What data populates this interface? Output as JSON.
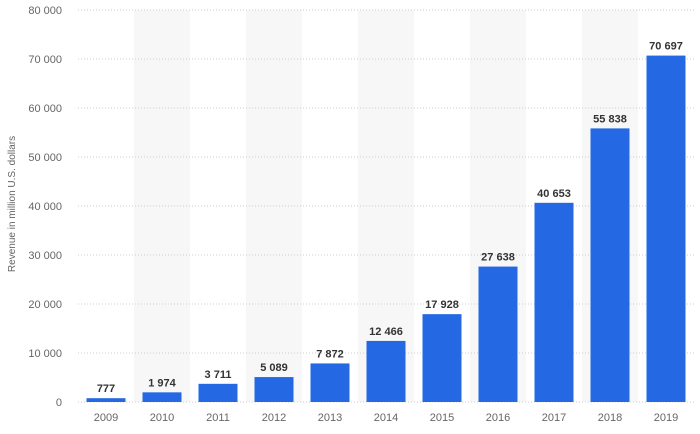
{
  "chart_data": {
    "type": "bar",
    "title": "",
    "xlabel": "",
    "ylabel": "Revenue in million U.S. dollars",
    "categories": [
      "2009",
      "2010",
      "2011",
      "2012",
      "2013",
      "2014",
      "2015",
      "2016",
      "2017",
      "2018",
      "2019"
    ],
    "values": [
      777,
      1974,
      3711,
      5089,
      7872,
      12466,
      17928,
      27638,
      40653,
      55838,
      70697
    ],
    "value_labels": [
      "777",
      "1 974",
      "3 711",
      "5 089",
      "7 872",
      "12 466",
      "17 928",
      "27 638",
      "40 653",
      "55 838",
      "70 697"
    ],
    "ylim": [
      0,
      80000
    ],
    "y_ticks": [
      0,
      10000,
      20000,
      30000,
      40000,
      50000,
      60000,
      70000,
      80000
    ],
    "y_tick_labels": [
      "0",
      "10 000",
      "20 000",
      "30 000",
      "40 000",
      "50 000",
      "60 000",
      "70 000",
      "80 000"
    ],
    "grid": true,
    "legend": "none",
    "bar_color": "#2469e3",
    "band_color": "#f7f7f7"
  }
}
